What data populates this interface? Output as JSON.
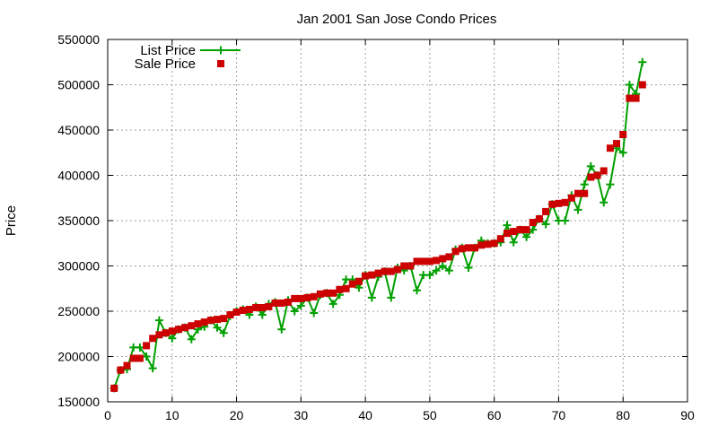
{
  "chart_data": {
    "type": "line",
    "title": "Jan 2001 San Jose Condo Prices",
    "xlabel": "",
    "ylabel": "Price",
    "xlim": [
      0,
      90
    ],
    "ylim": [
      150000,
      550000
    ],
    "x_ticks": [
      0,
      10,
      20,
      30,
      40,
      50,
      60,
      70,
      80,
      90
    ],
    "y_ticks": [
      150000,
      200000,
      250000,
      300000,
      350000,
      400000,
      450000,
      500000,
      550000
    ],
    "grid": true,
    "legend_position": "top-left",
    "series": [
      {
        "name": "List Price",
        "style": "line-plus",
        "color": "#00a000",
        "points": [
          [
            1,
            165000
          ],
          [
            2,
            185000
          ],
          [
            3,
            186000
          ],
          [
            4,
            210000
          ],
          [
            5,
            210000
          ],
          [
            6,
            200000
          ],
          [
            7,
            187000
          ],
          [
            8,
            240000
          ],
          [
            9,
            226000
          ],
          [
            10,
            220000
          ],
          [
            11,
            230000
          ],
          [
            12,
            232000
          ],
          [
            13,
            219000
          ],
          [
            14,
            230000
          ],
          [
            15,
            233000
          ],
          [
            16,
            240000
          ],
          [
            17,
            232000
          ],
          [
            18,
            226000
          ],
          [
            19,
            245000
          ],
          [
            20,
            250000
          ],
          [
            21,
            252000
          ],
          [
            22,
            246000
          ],
          [
            23,
            255000
          ],
          [
            24,
            246000
          ],
          [
            25,
            258000
          ],
          [
            26,
            260000
          ],
          [
            27,
            230000
          ],
          [
            28,
            262000
          ],
          [
            29,
            250000
          ],
          [
            30,
            256000
          ],
          [
            31,
            265000
          ],
          [
            32,
            248000
          ],
          [
            33,
            268000
          ],
          [
            34,
            270000
          ],
          [
            35,
            258000
          ],
          [
            36,
            268000
          ],
          [
            37,
            285000
          ],
          [
            38,
            285000
          ],
          [
            39,
            276000
          ],
          [
            40,
            290000
          ],
          [
            41,
            265000
          ],
          [
            42,
            288000
          ],
          [
            43,
            294000
          ],
          [
            44,
            265000
          ],
          [
            45,
            298000
          ],
          [
            46,
            295000
          ],
          [
            47,
            300000
          ],
          [
            48,
            273000
          ],
          [
            49,
            290000
          ],
          [
            50,
            290000
          ],
          [
            51,
            295000
          ],
          [
            52,
            300000
          ],
          [
            53,
            295000
          ],
          [
            54,
            318000
          ],
          [
            55,
            320000
          ],
          [
            56,
            298000
          ],
          [
            57,
            320000
          ],
          [
            58,
            328000
          ],
          [
            59,
            325000
          ],
          [
            60,
            325000
          ],
          [
            61,
            326000
          ],
          [
            62,
            345000
          ],
          [
            63,
            326000
          ],
          [
            64,
            340000
          ],
          [
            65,
            332000
          ],
          [
            66,
            340000
          ],
          [
            67,
            352000
          ],
          [
            68,
            346000
          ],
          [
            69,
            368000
          ],
          [
            70,
            350000
          ],
          [
            71,
            350000
          ],
          [
            72,
            378000
          ],
          [
            73,
            362000
          ],
          [
            74,
            390000
          ],
          [
            75,
            410000
          ],
          [
            76,
            400000
          ],
          [
            77,
            370000
          ],
          [
            78,
            390000
          ],
          [
            79,
            430000
          ],
          [
            80,
            425000
          ],
          [
            81,
            500000
          ],
          [
            82,
            490000
          ],
          [
            83,
            525000
          ]
        ]
      },
      {
        "name": "Sale Price",
        "style": "squares",
        "color": "#cc0000",
        "points": [
          [
            1,
            165000
          ],
          [
            2,
            185000
          ],
          [
            3,
            190000
          ],
          [
            4,
            198000
          ],
          [
            5,
            198000
          ],
          [
            6,
            212000
          ],
          [
            7,
            220000
          ],
          [
            8,
            224000
          ],
          [
            9,
            226000
          ],
          [
            10,
            228000
          ],
          [
            11,
            230000
          ],
          [
            12,
            232000
          ],
          [
            13,
            234000
          ],
          [
            14,
            236000
          ],
          [
            15,
            238000
          ],
          [
            16,
            240000
          ],
          [
            17,
            241000
          ],
          [
            18,
            242000
          ],
          [
            19,
            246000
          ],
          [
            20,
            249000
          ],
          [
            21,
            251000
          ],
          [
            22,
            252000
          ],
          [
            23,
            254000
          ],
          [
            24,
            254000
          ],
          [
            25,
            255000
          ],
          [
            26,
            259000
          ],
          [
            27,
            259000
          ],
          [
            28,
            260000
          ],
          [
            29,
            264000
          ],
          [
            30,
            264000
          ],
          [
            31,
            265000
          ],
          [
            32,
            266000
          ],
          [
            33,
            269000
          ],
          [
            34,
            270000
          ],
          [
            35,
            270000
          ],
          [
            36,
            274000
          ],
          [
            37,
            275000
          ],
          [
            38,
            280000
          ],
          [
            39,
            283000
          ],
          [
            40,
            289000
          ],
          [
            41,
            290000
          ],
          [
            42,
            292000
          ],
          [
            43,
            294000
          ],
          [
            44,
            294000
          ],
          [
            45,
            296000
          ],
          [
            46,
            300000
          ],
          [
            47,
            300000
          ],
          [
            48,
            305000
          ],
          [
            49,
            305000
          ],
          [
            50,
            305000
          ],
          [
            51,
            306000
          ],
          [
            52,
            308000
          ],
          [
            53,
            310000
          ],
          [
            54,
            316000
          ],
          [
            55,
            319000
          ],
          [
            56,
            320000
          ],
          [
            57,
            320000
          ],
          [
            58,
            323000
          ],
          [
            59,
            324000
          ],
          [
            60,
            325000
          ],
          [
            61,
            330000
          ],
          [
            62,
            336000
          ],
          [
            63,
            338000
          ],
          [
            64,
            340000
          ],
          [
            65,
            340000
          ],
          [
            66,
            348000
          ],
          [
            67,
            352000
          ],
          [
            68,
            360000
          ],
          [
            69,
            368000
          ],
          [
            70,
            369000
          ],
          [
            71,
            370000
          ],
          [
            72,
            375000
          ],
          [
            73,
            380000
          ],
          [
            74,
            380000
          ],
          [
            75,
            398000
          ],
          [
            76,
            400000
          ],
          [
            77,
            405000
          ],
          [
            78,
            430000
          ],
          [
            79,
            435000
          ],
          [
            80,
            445000
          ],
          [
            81,
            485000
          ],
          [
            82,
            485000
          ],
          [
            83,
            500000
          ]
        ]
      }
    ]
  }
}
